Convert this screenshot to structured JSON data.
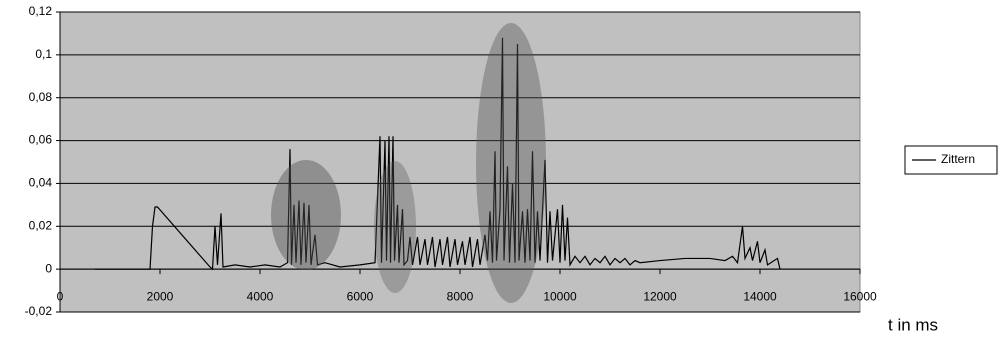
{
  "chart_data": {
    "type": "line",
    "x_label": "t in ms",
    "x": [
      700,
      1800,
      1850,
      1900,
      1950,
      3000,
      3050,
      3100,
      3150,
      3220,
      3260,
      3500,
      3800,
      4100,
      4400,
      4550,
      4600,
      4630,
      4680,
      4720,
      4780,
      4820,
      4880,
      4920,
      4980,
      5020,
      5100,
      5150,
      5300,
      5600,
      6000,
      6300,
      6400,
      6430,
      6500,
      6530,
      6580,
      6610,
      6660,
      6690,
      6750,
      6780,
      6850,
      6880,
      6950,
      7000,
      7050,
      7150,
      7200,
      7300,
      7350,
      7450,
      7500,
      7600,
      7650,
      7750,
      7800,
      7900,
      7950,
      8050,
      8100,
      8200,
      8250,
      8350,
      8400,
      8500,
      8550,
      8600,
      8650,
      8700,
      8730,
      8800,
      8850,
      8880,
      8950,
      8990,
      9050,
      9100,
      9150,
      9180,
      9250,
      9300,
      9350,
      9400,
      9450,
      9500,
      9550,
      9600,
      9700,
      9750,
      9800,
      9850,
      9950,
      10000,
      10050,
      10100,
      10150,
      10200,
      10300,
      10400,
      10500,
      10600,
      10700,
      10800,
      10900,
      11000,
      11100,
      11200,
      11300,
      11400,
      11500,
      11600,
      12000,
      12500,
      13000,
      13300,
      13450,
      13550,
      13650,
      13700,
      13800,
      13850,
      13950,
      14000,
      14100,
      14150,
      14350,
      14400
    ],
    "series": [
      {
        "name": "Zittern",
        "color": "#000000",
        "values": [
          0,
          0,
          0.02,
          0.029,
          0.029,
          0.001,
          0,
          0.02,
          0.002,
          0.026,
          0.001,
          0.002,
          0.001,
          0.002,
          0.001,
          0.003,
          0.056,
          0.002,
          0.03,
          0.003,
          0.032,
          0.002,
          0.031,
          0.003,
          0.03,
          0.002,
          0.016,
          0.002,
          0.003,
          0.001,
          0.002,
          0.003,
          0.062,
          0.003,
          0.06,
          0.004,
          0.062,
          0.003,
          0.062,
          0.004,
          0.03,
          0.003,
          0.028,
          0.002,
          0.004,
          0.015,
          0.002,
          0.015,
          0.002,
          0.014,
          0.002,
          0.015,
          0.001,
          0.014,
          0.002,
          0.015,
          0.001,
          0.014,
          0.002,
          0.013,
          0.002,
          0.015,
          0.001,
          0.014,
          0.002,
          0.016,
          0.004,
          0.027,
          0.003,
          0.055,
          0.004,
          0.028,
          0.108,
          0.004,
          0.048,
          0.003,
          0.04,
          0.003,
          0.105,
          0.004,
          0.027,
          0.003,
          0.028,
          0.004,
          0.055,
          0.003,
          0.027,
          0.004,
          0.051,
          0.003,
          0.027,
          0.004,
          0.028,
          0.003,
          0.03,
          0.004,
          0.024,
          0.002,
          0.006,
          0.003,
          0.006,
          0.002,
          0.005,
          0.003,
          0.006,
          0.002,
          0.005,
          0.003,
          0.005,
          0.002,
          0.004,
          0.003,
          0.004,
          0.005,
          0.005,
          0.004,
          0.006,
          0.003,
          0.02,
          0.005,
          0.01,
          0.004,
          0.013,
          0.003,
          0.009,
          0.002,
          0.005,
          0
        ]
      }
    ],
    "xlim": [
      0,
      16000
    ],
    "xticks": [
      0,
      2000,
      4000,
      6000,
      8000,
      10000,
      12000,
      14000,
      16000
    ],
    "ylim": [
      -0.02,
      0.12
    ],
    "yticks": [
      {
        "value": -0.02,
        "label": "-0,02"
      },
      0,
      {
        "value": 0.02,
        "label": "0,02"
      },
      {
        "value": 0.04,
        "label": "0,04"
      },
      {
        "value": 0.06,
        "label": "0,06"
      },
      {
        "value": 0.08,
        "label": "0,08"
      },
      {
        "value": 0.1,
        "label": "0,1"
      },
      {
        "value": 0.12,
        "label": "0,12"
      }
    ],
    "grid": true,
    "legend": "right"
  }
}
